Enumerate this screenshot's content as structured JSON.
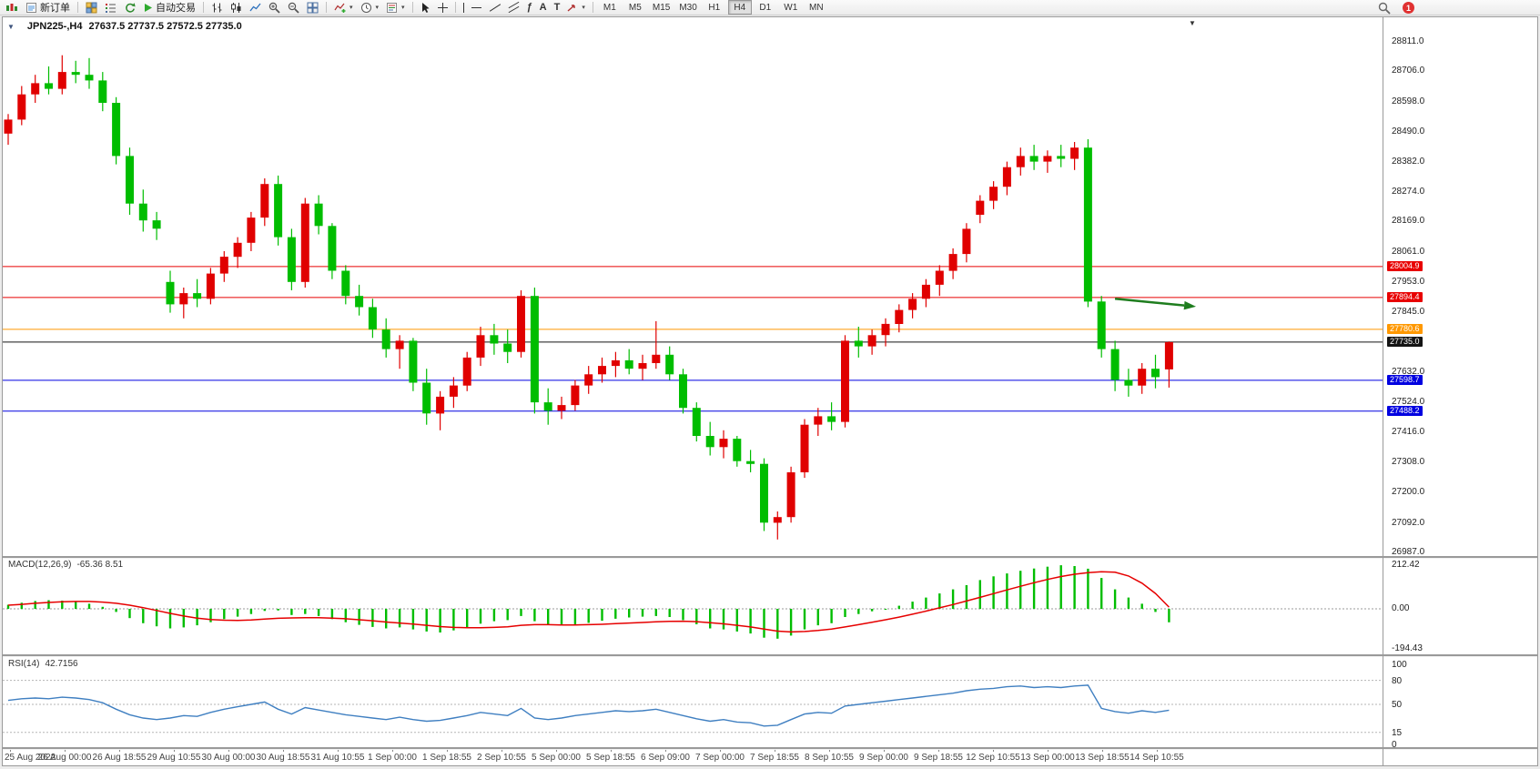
{
  "glyphs": {
    "triangle_down": "▼",
    "caret": "▾",
    "text_tool": "A",
    "label_tool": "T",
    "fib": "ƒ"
  },
  "window": {
    "symbol_period": "JPN225-,H4",
    "ohlc_text": "27637.5 27737.5 27572.5 27735.0"
  },
  "toolbar": {
    "new_order": "新订单",
    "autotrading": "自动交易",
    "timeframes": [
      "M1",
      "M5",
      "M15",
      "M30",
      "H1",
      "H4",
      "D1",
      "W1",
      "MN"
    ],
    "active_timeframe": "H4",
    "notification_count": "1"
  },
  "indicators": {
    "macd_title": "MACD(12,26,9)",
    "macd_values": "-65.36 8.51",
    "rsi_title": "RSI(14)",
    "rsi_value": "42.7156"
  },
  "chart_data": {
    "type": "candlestick",
    "symbol": "JPN225-",
    "timeframe": "H4",
    "title": "JPN225-,H4 27637.5 27737.5 27572.5 27735.0",
    "last_ohlc": {
      "open": 27637.5,
      "high": 27737.5,
      "low": 27572.5,
      "close": 27735.0
    },
    "price_range_shown": [
      26987.0,
      28811.0
    ],
    "grid": false,
    "colors": {
      "bull": "#e00000",
      "bear": "#00bd00",
      "macd_histogram": "#00bd00",
      "macd_signal": "#e60000",
      "rsi_line": "#3f7fc1"
    },
    "price_axis_ticks": [
      28811.0,
      28706.0,
      28598.0,
      28490.0,
      28382.0,
      28274.0,
      28169.0,
      28061.0,
      27953.0,
      27845.0,
      27632.0,
      27524.0,
      27416.0,
      27308.0,
      27200.0,
      27092.0,
      26987.0
    ],
    "price_markers": [
      {
        "price": 28004.9,
        "label": "28004.9",
        "color": "#e80000",
        "kind": "resistance-line"
      },
      {
        "price": 27894.4,
        "label": "27894.4",
        "color": "#e80000",
        "kind": "resistance-line"
      },
      {
        "price": 27780.6,
        "label": "27780.6",
        "color": "#ff9800",
        "kind": "level-line"
      },
      {
        "price": 27735.0,
        "label": "27735.0",
        "color": "#141414",
        "kind": "current-price-line"
      },
      {
        "price": 27598.7,
        "label": "27598.7",
        "color": "#0000e0",
        "kind": "support-line"
      },
      {
        "price": 27488.2,
        "label": "27488.2",
        "color": "#0000e0",
        "kind": "support-line"
      }
    ],
    "time_labels": [
      "25 Aug 2022",
      "26 Aug 00:00",
      "26 Aug 18:55",
      "29 Aug 10:55",
      "30 Aug 00:00",
      "30 Aug 18:55",
      "31 Aug 10:55",
      "1 Sep 00:00",
      "1 Sep 18:55",
      "2 Sep 10:55",
      "5 Sep 00:00",
      "5 Sep 18:55",
      "6 Sep 09:00",
      "7 Sep 00:00",
      "7 Sep 18:55",
      "8 Sep 10:55",
      "9 Sep 00:00",
      "9 Sep 18:55",
      "12 Sep 10:55",
      "13 Sep 00:00",
      "13 Sep 18:55",
      "14 Sep 10:55"
    ],
    "candles": [
      [
        28480,
        28550,
        28440,
        28530
      ],
      [
        28530,
        28650,
        28510,
        28620
      ],
      [
        28620,
        28690,
        28590,
        28660
      ],
      [
        28660,
        28720,
        28620,
        28640
      ],
      [
        28640,
        28760,
        28620,
        28700
      ],
      [
        28700,
        28740,
        28660,
        28690
      ],
      [
        28690,
        28750,
        28640,
        28670
      ],
      [
        28670,
        28700,
        28560,
        28590
      ],
      [
        28590,
        28610,
        28370,
        28400
      ],
      [
        28400,
        28430,
        28190,
        28230
      ],
      [
        28230,
        28280,
        28130,
        28170
      ],
      [
        28170,
        28200,
        28100,
        28140
      ],
      [
        27950,
        27990,
        27840,
        27870
      ],
      [
        27870,
        27930,
        27820,
        27910
      ],
      [
        27910,
        27960,
        27860,
        27890
      ],
      [
        27890,
        28000,
        27870,
        27980
      ],
      [
        27980,
        28060,
        27950,
        28040
      ],
      [
        28040,
        28110,
        28000,
        28090
      ],
      [
        28090,
        28200,
        28060,
        28180
      ],
      [
        28180,
        28320,
        28150,
        28300
      ],
      [
        28300,
        28330,
        28080,
        28110
      ],
      [
        28110,
        28140,
        27920,
        27950
      ],
      [
        27950,
        28250,
        27930,
        28230
      ],
      [
        28230,
        28260,
        28120,
        28150
      ],
      [
        28150,
        28160,
        27960,
        27990
      ],
      [
        27990,
        28010,
        27870,
        27900
      ],
      [
        27900,
        27940,
        27830,
        27860
      ],
      [
        27860,
        27890,
        27750,
        27780
      ],
      [
        27780,
        27820,
        27680,
        27710
      ],
      [
        27710,
        27760,
        27640,
        27740
      ],
      [
        27740,
        27750,
        27560,
        27590
      ],
      [
        27590,
        27640,
        27440,
        27480
      ],
      [
        27480,
        27560,
        27420,
        27540
      ],
      [
        27540,
        27610,
        27500,
        27580
      ],
      [
        27580,
        27700,
        27560,
        27680
      ],
      [
        27680,
        27790,
        27650,
        27760
      ],
      [
        27760,
        27800,
        27690,
        27730
      ],
      [
        27730,
        27780,
        27660,
        27700
      ],
      [
        27700,
        27920,
        27680,
        27900
      ],
      [
        27900,
        27930,
        27480,
        27520
      ],
      [
        27520,
        27570,
        27440,
        27490
      ],
      [
        27490,
        27540,
        27460,
        27510
      ],
      [
        27510,
        27600,
        27490,
        27580
      ],
      [
        27580,
        27650,
        27550,
        27620
      ],
      [
        27620,
        27680,
        27590,
        27650
      ],
      [
        27650,
        27700,
        27610,
        27670
      ],
      [
        27670,
        27710,
        27620,
        27640
      ],
      [
        27640,
        27690,
        27600,
        27660
      ],
      [
        27660,
        27810,
        27640,
        27690
      ],
      [
        27690,
        27720,
        27600,
        27620
      ],
      [
        27620,
        27640,
        27480,
        27500
      ],
      [
        27500,
        27520,
        27380,
        27400
      ],
      [
        27400,
        27450,
        27330,
        27360
      ],
      [
        27360,
        27420,
        27320,
        27390
      ],
      [
        27390,
        27400,
        27290,
        27310
      ],
      [
        27310,
        27350,
        27270,
        27300
      ],
      [
        27300,
        27320,
        27060,
        27090
      ],
      [
        27090,
        27130,
        27030,
        27110
      ],
      [
        27110,
        27290,
        27090,
        27270
      ],
      [
        27270,
        27460,
        27250,
        27440
      ],
      [
        27440,
        27500,
        27400,
        27470
      ],
      [
        27470,
        27520,
        27420,
        27450
      ],
      [
        27450,
        27760,
        27430,
        27740
      ],
      [
        27740,
        27790,
        27680,
        27720
      ],
      [
        27720,
        27780,
        27690,
        27760
      ],
      [
        27760,
        27820,
        27720,
        27800
      ],
      [
        27800,
        27870,
        27770,
        27850
      ],
      [
        27850,
        27910,
        27820,
        27890
      ],
      [
        27890,
        27960,
        27860,
        27940
      ],
      [
        27940,
        28010,
        27900,
        27990
      ],
      [
        27990,
        28070,
        27960,
        28050
      ],
      [
        28050,
        28160,
        28020,
        28140
      ],
      [
        28190,
        28260,
        28160,
        28240
      ],
      [
        28240,
        28310,
        28210,
        28290
      ],
      [
        28290,
        28380,
        28260,
        28360
      ],
      [
        28360,
        28430,
        28330,
        28400
      ],
      [
        28400,
        28440,
        28350,
        28380
      ],
      [
        28380,
        28420,
        28340,
        28400
      ],
      [
        28400,
        28440,
        28360,
        28390
      ],
      [
        28390,
        28450,
        28350,
        28430
      ],
      [
        28430,
        28460,
        27860,
        27880
      ],
      [
        27880,
        27900,
        27680,
        27710
      ],
      [
        27710,
        27740,
        27560,
        27600
      ],
      [
        27600,
        27640,
        27540,
        27580
      ],
      [
        27580,
        27660,
        27550,
        27640
      ],
      [
        27640,
        27690,
        27570,
        27610
      ],
      [
        27637.5,
        27737.5,
        27572.5,
        27735.0
      ]
    ],
    "macd": {
      "label": "MACD(12,26,9)",
      "current_main": -65.36,
      "current_signal": 8.51,
      "range": [
        -194.43,
        212.42
      ],
      "axis_labels": [
        212.42,
        0.0,
        -194.43
      ],
      "histogram": [
        20,
        30,
        38,
        42,
        40,
        35,
        25,
        10,
        -15,
        -45,
        -70,
        -85,
        -95,
        -90,
        -80,
        -65,
        -50,
        -38,
        -25,
        -10,
        -8,
        -30,
        -25,
        -35,
        -50,
        -65,
        -78,
        -88,
        -95,
        -90,
        -100,
        -110,
        -115,
        -105,
        -90,
        -72,
        -60,
        -55,
        -35,
        -60,
        -75,
        -80,
        -75,
        -68,
        -58,
        -48,
        -42,
        -38,
        -35,
        -40,
        -55,
        -75,
        -95,
        -100,
        -110,
        -120,
        -140,
        -145,
        -130,
        -100,
        -80,
        -70,
        -40,
        -25,
        -12,
        0,
        15,
        35,
        55,
        75,
        95,
        115,
        140,
        158,
        172,
        185,
        196,
        205,
        212,
        208,
        195,
        150,
        95,
        55,
        25,
        -15,
        -65.36
      ],
      "signal": [
        18,
        22,
        27,
        31,
        34,
        36,
        36,
        33,
        27,
        18,
        6,
        -8,
        -22,
        -35,
        -45,
        -52,
        -55,
        -56,
        -54,
        -50,
        -46,
        -44,
        -43,
        -43,
        -45,
        -48,
        -53,
        -58,
        -64,
        -69,
        -74,
        -80,
        -86,
        -90,
        -92,
        -92,
        -90,
        -87,
        -80,
        -77,
        -77,
        -78,
        -78,
        -77,
        -75,
        -72,
        -69,
        -66,
        -63,
        -61,
        -60,
        -62,
        -67,
        -73,
        -80,
        -88,
        -98,
        -108,
        -112,
        -110,
        -105,
        -98,
        -88,
        -77,
        -65,
        -53,
        -40,
        -26,
        -11,
        5,
        21,
        38,
        56,
        74,
        92,
        110,
        127,
        143,
        157,
        168,
        176,
        180,
        178,
        160,
        125,
        75,
        8.51
      ]
    },
    "rsi": {
      "label": "RSI(14)",
      "current": 42.7156,
      "range": [
        0,
        100
      ],
      "levels": [
        80,
        50,
        15
      ],
      "axis_labels": [
        100,
        80,
        50,
        15,
        0
      ],
      "values": [
        55,
        57,
        58,
        57,
        59,
        58,
        56,
        52,
        44,
        37,
        33,
        31,
        33,
        36,
        35,
        40,
        44,
        47,
        50,
        53,
        44,
        38,
        46,
        43,
        40,
        37,
        35,
        33,
        31,
        34,
        31,
        29,
        30,
        33,
        36,
        40,
        38,
        36,
        45,
        33,
        31,
        33,
        36,
        38,
        40,
        42,
        41,
        42,
        44,
        40,
        36,
        32,
        29,
        31,
        28,
        27,
        23,
        24,
        31,
        38,
        40,
        39,
        48,
        50,
        52,
        54,
        56,
        58,
        60,
        62,
        64,
        67,
        69,
        70,
        72,
        73,
        71,
        72,
        71,
        73,
        74,
        45,
        41,
        39,
        42,
        40,
        42.72
      ]
    },
    "annotations": [
      {
        "type": "arrow",
        "color": "#1e7d1e",
        "from": {
          "candle_index": 82,
          "price": 27890
        },
        "to": {
          "candle_index": 88,
          "price": 27862
        }
      }
    ]
  }
}
